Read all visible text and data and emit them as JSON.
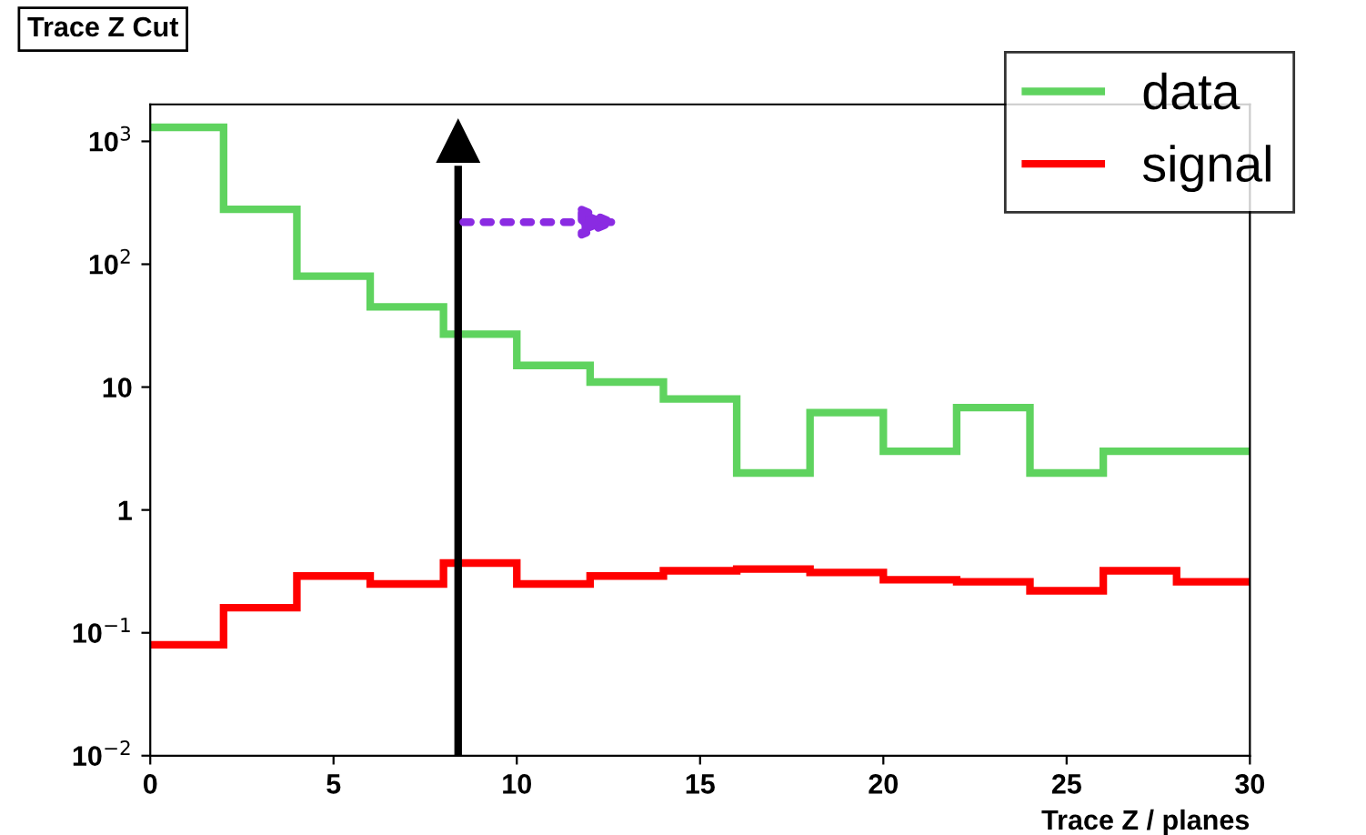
{
  "chart_data": {
    "type": "histogram",
    "title": "Trace Z Cut",
    "xlabel": "Trace Z / planes",
    "bins": [
      0,
      2,
      4,
      6,
      8,
      10,
      12,
      14,
      16,
      18,
      20,
      22,
      24,
      26,
      28,
      30
    ],
    "series": [
      {
        "name": "data",
        "color": "#5fd35f",
        "values": [
          1300,
          280,
          80,
          45,
          27,
          15,
          11,
          8,
          2,
          6.2,
          3,
          6.8,
          2,
          3,
          3
        ]
      },
      {
        "name": "signal",
        "color": "#ff0000",
        "values": [
          0.08,
          0.16,
          0.29,
          0.25,
          0.37,
          0.25,
          0.29,
          0.32,
          0.33,
          0.31,
          0.27,
          0.26,
          0.22,
          0.32,
          0.26
        ]
      }
    ],
    "log": "y",
    "xlim": [
      0,
      30
    ],
    "ylim": [
      0.01,
      2000
    ],
    "xticks": [
      0,
      5,
      10,
      15,
      20,
      25,
      30
    ],
    "yticks": [
      {
        "value": 0.01,
        "label": "10$^{−2}$"
      },
      {
        "value": 0.1,
        "label": "10$^{−1}$"
      },
      1,
      10,
      {
        "value": 100,
        "label": "10$^{2}$"
      },
      {
        "value": 1000,
        "label": "10$^{3}$"
      }
    ],
    "ref_lines": [
      {
        "axis": "x",
        "value": 8.4,
        "color": "#000000"
      }
    ],
    "grid": false,
    "legend": "top right"
  }
}
